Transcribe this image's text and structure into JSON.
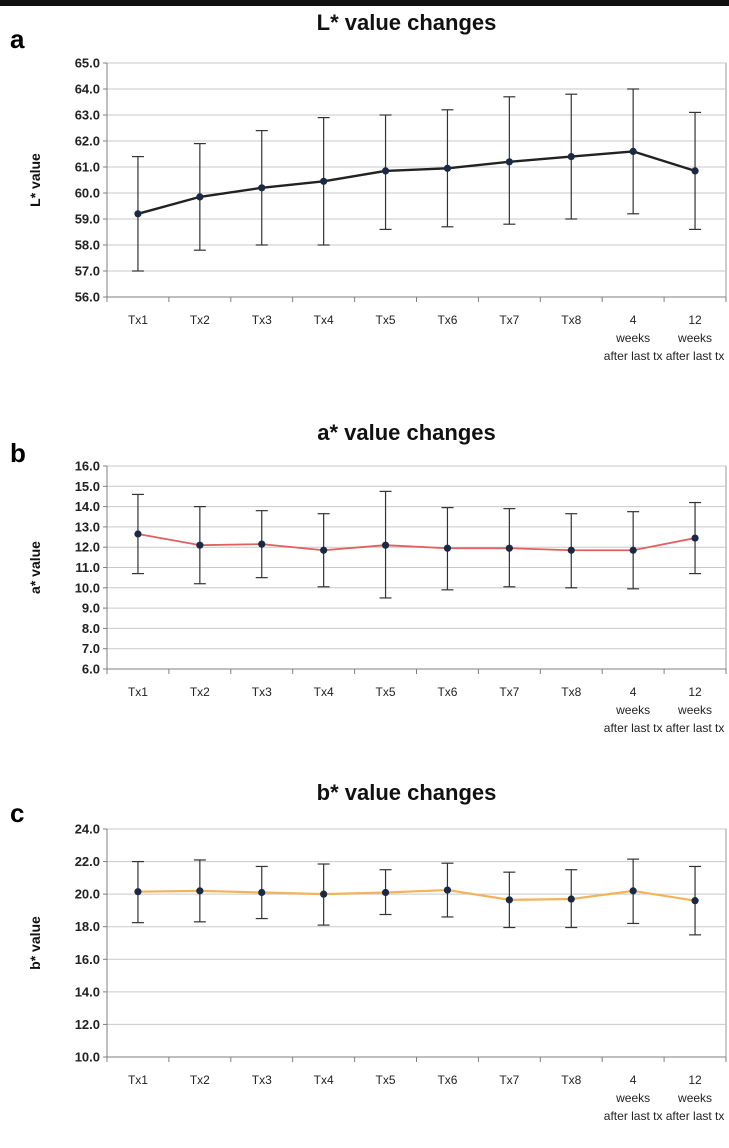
{
  "figure": {
    "colors": {
      "line_a": "#222222",
      "line_b": "#e06060",
      "line_c": "#f2b35a",
      "marker": "#1a2a44"
    }
  },
  "chart_data": [
    {
      "panel": "a",
      "type": "line",
      "title": "L* value changes",
      "ylabel": "L* value",
      "xlabel": "",
      "categories": [
        "Tx1",
        "Tx2",
        "Tx3",
        "Tx4",
        "Tx5",
        "Tx6",
        "Tx7",
        "Tx8",
        "4 weeks after last tx",
        "12 weeks after last tx"
      ],
      "values": [
        59.2,
        59.85,
        60.2,
        60.45,
        60.85,
        60.95,
        61.2,
        61.4,
        61.6,
        60.85
      ],
      "error_low": [
        57.0,
        57.8,
        58.0,
        58.0,
        58.6,
        58.7,
        58.8,
        59.0,
        59.2,
        58.6
      ],
      "error_high": [
        61.4,
        61.9,
        62.4,
        62.9,
        63.0,
        63.2,
        63.7,
        63.8,
        64.0,
        63.1
      ],
      "ylim": [
        56.0,
        65.0
      ],
      "yticks": [
        "56.0",
        "57.0",
        "58.0",
        "59.0",
        "60.0",
        "61.0",
        "62.0",
        "63.0",
        "64.0",
        "65.0"
      ],
      "grid": true
    },
    {
      "panel": "b",
      "type": "line",
      "title": "a* value changes",
      "ylabel": "a* value",
      "xlabel": "",
      "categories": [
        "Tx1",
        "Tx2",
        "Tx3",
        "Tx4",
        "Tx5",
        "Tx6",
        "Tx7",
        "Tx8",
        "4 weeks after last tx",
        "12 weeks after last tx"
      ],
      "values": [
        12.65,
        12.1,
        12.15,
        11.85,
        12.1,
        11.95,
        11.95,
        11.85,
        11.85,
        12.45
      ],
      "error_low": [
        10.7,
        10.2,
        10.5,
        10.05,
        9.5,
        9.9,
        10.05,
        10.0,
        9.95,
        10.7
      ],
      "error_high": [
        14.6,
        14.0,
        13.8,
        13.65,
        14.75,
        13.95,
        13.9,
        13.65,
        13.75,
        14.2
      ],
      "ylim": [
        6.0,
        16.0
      ],
      "yticks": [
        "6.0",
        "7.0",
        "8.0",
        "9.0",
        "10.0",
        "11.0",
        "12.0",
        "13.0",
        "14.0",
        "15.0",
        "16.0"
      ],
      "grid": true
    },
    {
      "panel": "c",
      "type": "line",
      "title": "b* value changes",
      "ylabel": "b* value",
      "xlabel": "",
      "categories": [
        "Tx1",
        "Tx2",
        "Tx3",
        "Tx4",
        "Tx5",
        "Tx6",
        "Tx7",
        "Tx8",
        "4 weeks after last tx",
        "12 weeks after last tx"
      ],
      "values": [
        20.15,
        20.2,
        20.1,
        20.0,
        20.1,
        20.25,
        19.65,
        19.7,
        20.2,
        19.6
      ],
      "error_low": [
        18.25,
        18.3,
        18.5,
        18.1,
        18.75,
        18.6,
        17.95,
        17.95,
        18.2,
        17.5
      ],
      "error_high": [
        22.0,
        22.1,
        21.7,
        21.85,
        21.5,
        21.9,
        21.35,
        21.5,
        22.15,
        21.7
      ],
      "ylim": [
        10.0,
        24.0
      ],
      "yticks": [
        "10.0",
        "12.0",
        "14.0",
        "16.0",
        "18.0",
        "20.0",
        "22.0",
        "24.0"
      ],
      "grid": true
    }
  ]
}
